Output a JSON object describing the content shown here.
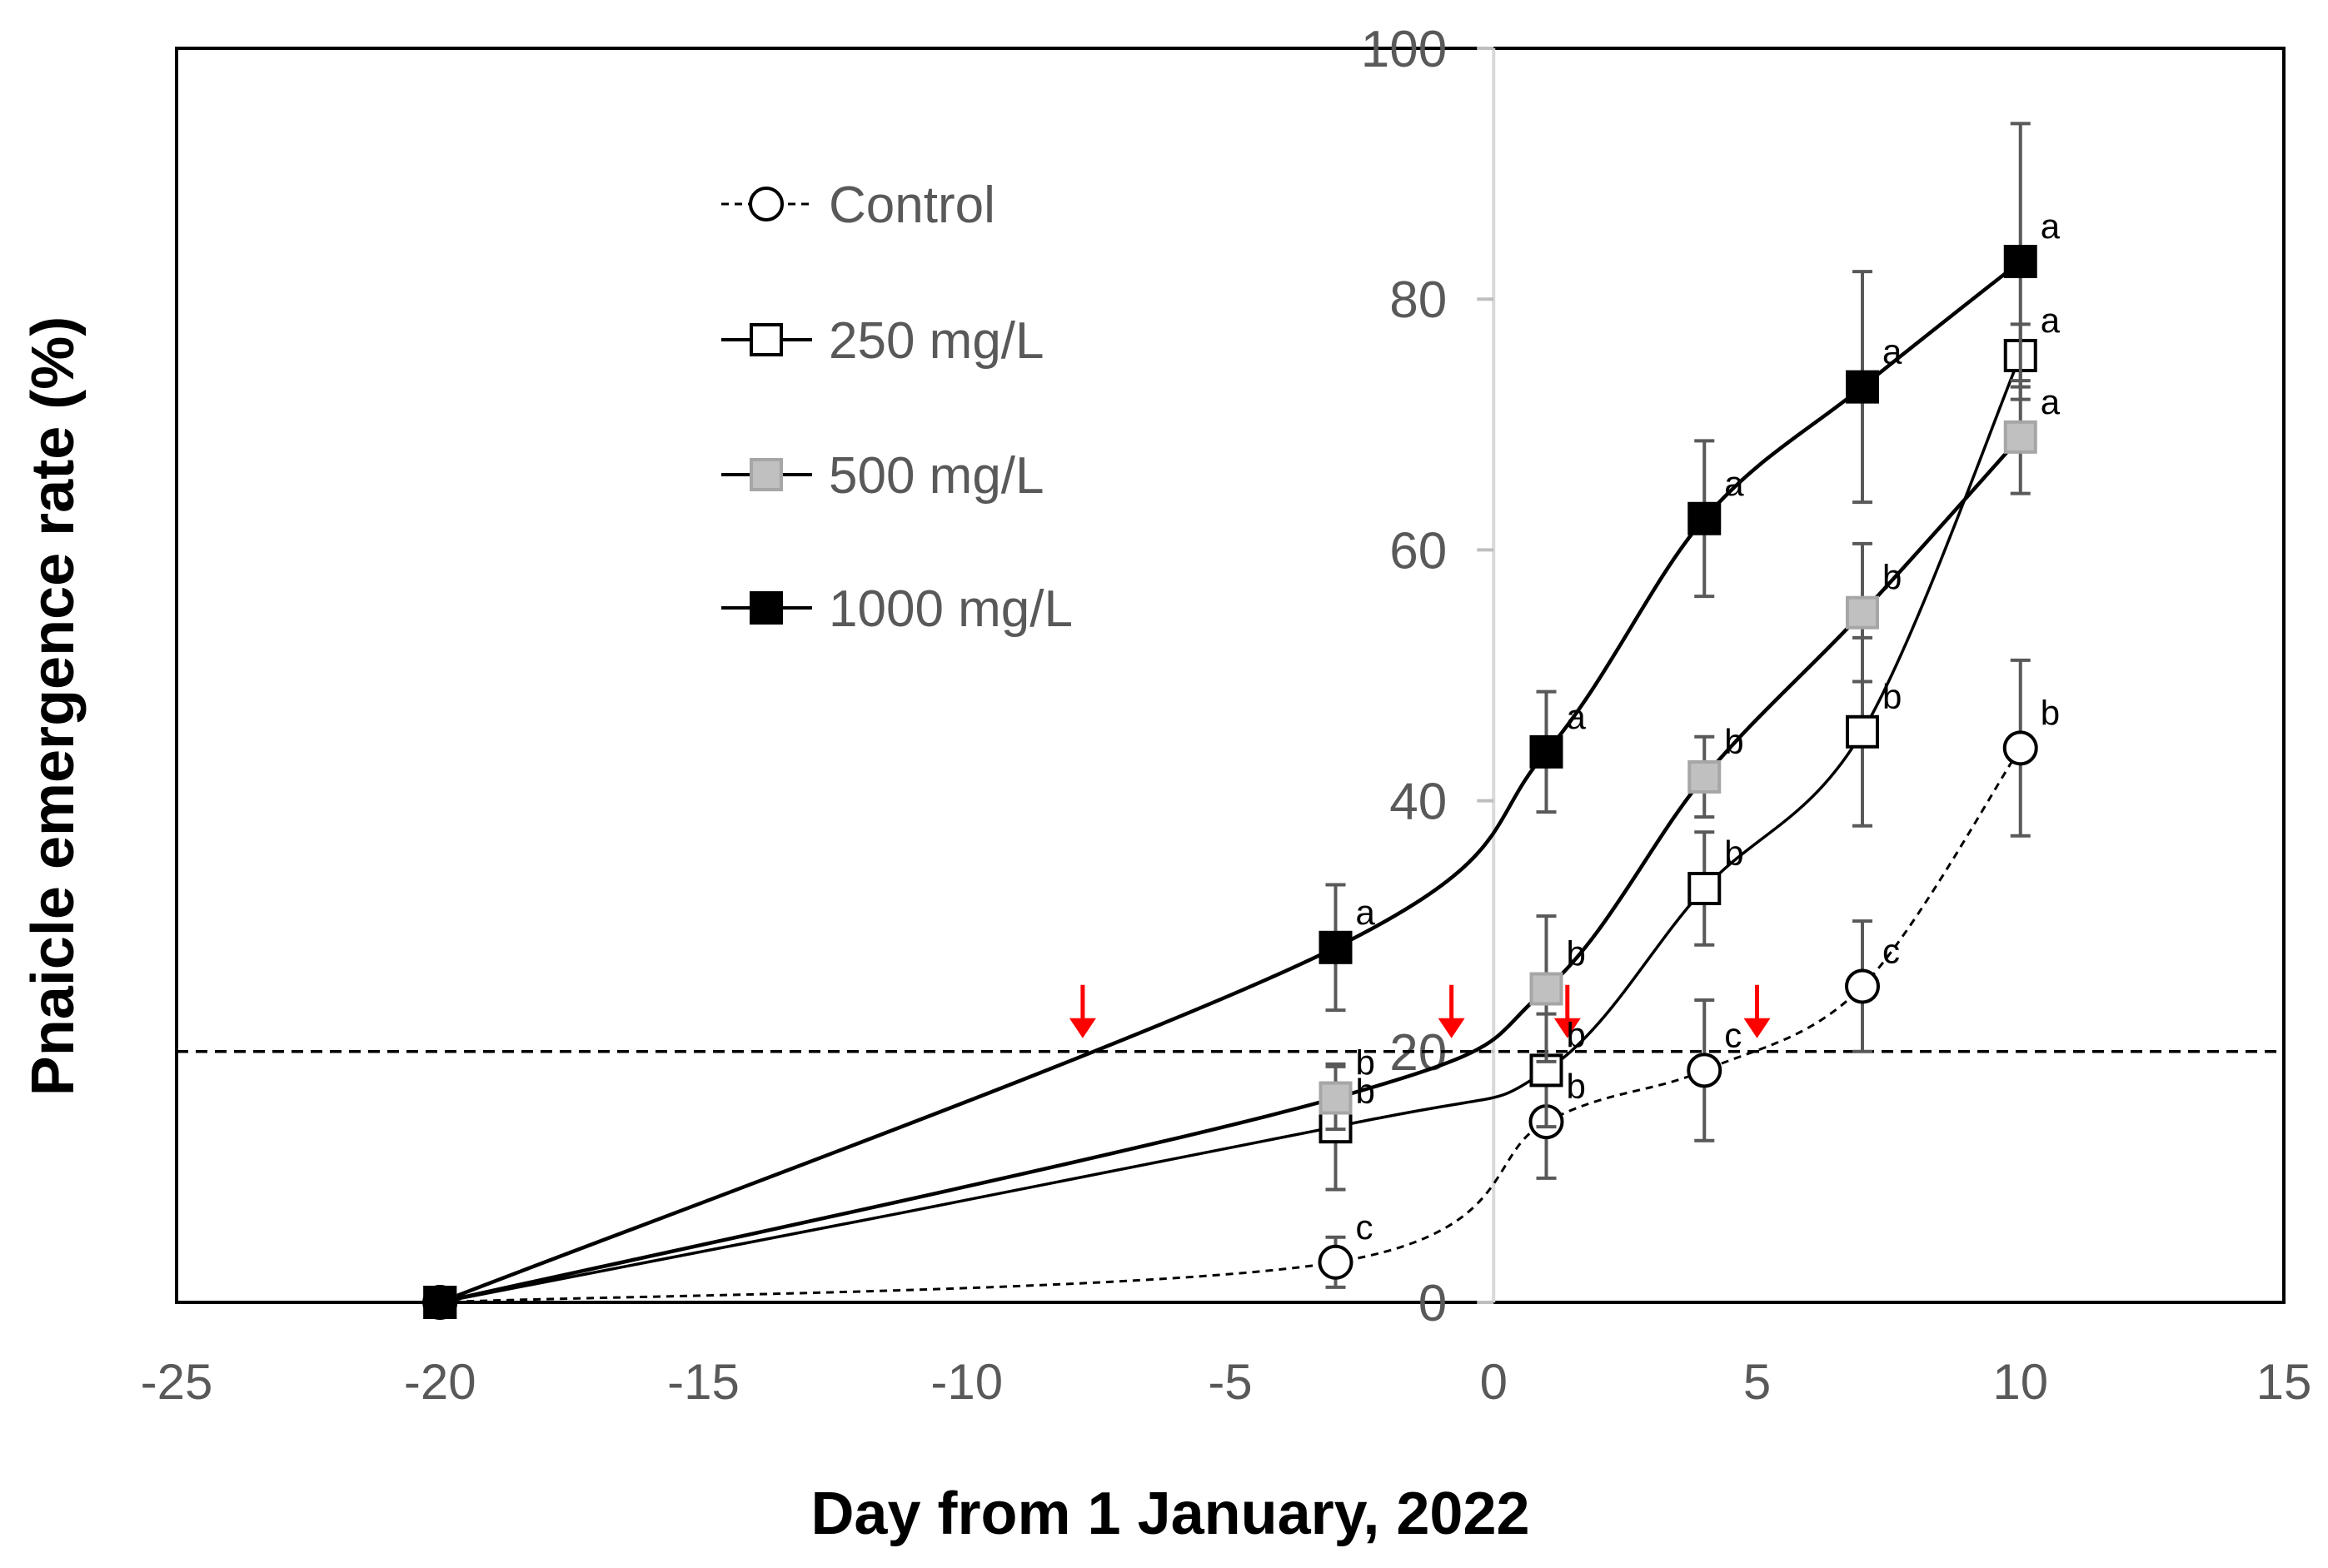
{
  "chart_data": {
    "type": "line",
    "xlabel": "Day from 1 January, 2022",
    "ylabel": "Pnaicle emergence rate (%)",
    "xlim": [
      -25,
      15
    ],
    "ylim": [
      0,
      100
    ],
    "x_ticks": [
      -25,
      -20,
      -15,
      -10,
      -5,
      0,
      5,
      10,
      15
    ],
    "x_tick_labels": [
      "-25",
      "-20",
      "-15",
      "-10",
      "-5",
      "0",
      "5",
      "10",
      "15"
    ],
    "y_ticks": [
      0,
      20,
      40,
      60,
      80,
      100
    ],
    "y_tick_labels": [
      "0",
      "20",
      "40",
      "60",
      "80",
      "100"
    ],
    "x": [
      -20,
      -3,
      1,
      4,
      7,
      10
    ],
    "threshold": 20,
    "threshold_arrows_x": [
      -7.8,
      -0.8,
      1.4,
      5.0
    ],
    "legend_position": "upper-left",
    "series": [
      {
        "name": "Control",
        "marker": "circle",
        "fill": "#ffffff",
        "line": "dashed",
        "values": [
          0,
          3.2,
          14.4,
          18.5,
          25.2,
          44.2
        ],
        "errors": [
          0,
          2.0,
          4.5,
          5.6,
          5.2,
          7.0
        ],
        "letters": [
          "",
          "c",
          "b",
          "c",
          "c",
          "b"
        ]
      },
      {
        "name": "250 mg/L",
        "marker": "square",
        "fill": "#ffffff",
        "line": "solid",
        "values": [
          0,
          14.0,
          18.5,
          33.0,
          45.5,
          75.5
        ],
        "errors": [
          0,
          5.0,
          4.5,
          4.5,
          7.5,
          2.5
        ],
        "letters": [
          "",
          "b",
          "b",
          "b",
          "b",
          "a"
        ]
      },
      {
        "name": "500 mg/L",
        "marker": "square",
        "fill": "#c0c0c0",
        "line": "solid",
        "values": [
          0,
          16.3,
          25.0,
          41.9,
          55.0,
          69.0
        ],
        "errors": [
          0,
          2.5,
          5.8,
          3.2,
          5.5,
          4.5
        ],
        "letters": [
          "",
          "b",
          "b",
          "b",
          "b",
          "a"
        ]
      },
      {
        "name": "1000 mg/L",
        "marker": "square",
        "fill": "#000000",
        "line": "solid",
        "values": [
          0,
          28.3,
          43.9,
          62.5,
          73.0,
          83.0
        ],
        "errors": [
          0,
          5.0,
          4.8,
          6.2,
          9.2,
          11.0
        ],
        "letters": [
          "",
          "a",
          "a",
          "a",
          "a",
          "a"
        ]
      }
    ]
  }
}
